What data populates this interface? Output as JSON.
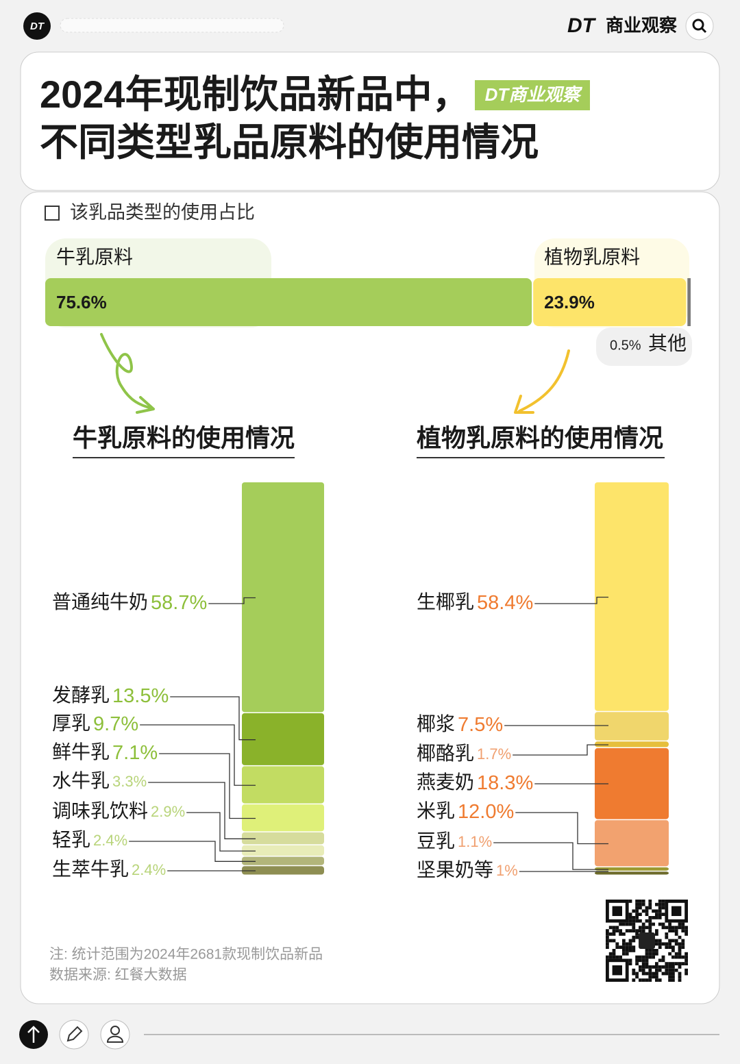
{
  "header": {
    "brand_mark": "DT",
    "brand_name": "商业观察"
  },
  "title_lines": [
    "2024年现制饮品新品中，",
    "不同类型乳品原料的使用情况"
  ],
  "badge": "DT商业观察",
  "chart_data": [
    {
      "type": "stacked-bar-horizontal",
      "subtitle": "该乳品类型的使用占比",
      "categories": [
        "牛乳原料",
        "植物乳原料",
        "其他"
      ],
      "values": [
        75.6,
        23.9,
        0.5
      ],
      "value_labels": [
        "75.6%",
        "23.9%",
        "0.5%"
      ],
      "colors": [
        "#a5cd5a",
        "#fde46a",
        "#7a7a7a"
      ]
    },
    {
      "type": "stacked-column",
      "title": "牛乳原料的使用情况",
      "categories": [
        "普通纯牛奶",
        "发酵乳",
        "厚乳",
        "鲜牛乳",
        "水牛乳",
        "调味乳饮料",
        "轻乳",
        "生萃牛乳"
      ],
      "values": [
        58.7,
        13.5,
        9.7,
        7.1,
        3.3,
        2.9,
        2.4,
        2.4
      ],
      "value_labels": [
        "58.7%",
        "13.5%",
        "9.7%",
        "7.1%",
        "3.3%",
        "2.9%",
        "2.4%",
        "2.4%"
      ],
      "colors": [
        "#a5cd5a",
        "#8ab22a",
        "#c2dc62",
        "#dff079",
        "#d6dc9c",
        "#e8ecb8",
        "#b2b57a",
        "#8e8e52"
      ]
    },
    {
      "type": "stacked-column",
      "title": "植物乳原料的使用情况",
      "categories": [
        "生椰乳",
        "椰浆",
        "椰酪乳",
        "燕麦奶",
        "米乳",
        "豆乳",
        "坚果奶等"
      ],
      "values": [
        58.4,
        7.5,
        1.7,
        18.3,
        12.0,
        1.1,
        1
      ],
      "value_labels": [
        "58.4%",
        "7.5%",
        "1.7%",
        "18.3%",
        "12.0%",
        "1.1%",
        "1%"
      ],
      "colors": [
        "#fde46a",
        "#f0d66c",
        "#e6bf3c",
        "#ef7b30",
        "#f2a26f",
        "#9c9a32",
        "#6e6c2c"
      ]
    }
  ],
  "footer": {
    "note": "注: 统计范围为2024年2681款现制饮品新品",
    "source": "数据来源: 红餐大数据"
  }
}
